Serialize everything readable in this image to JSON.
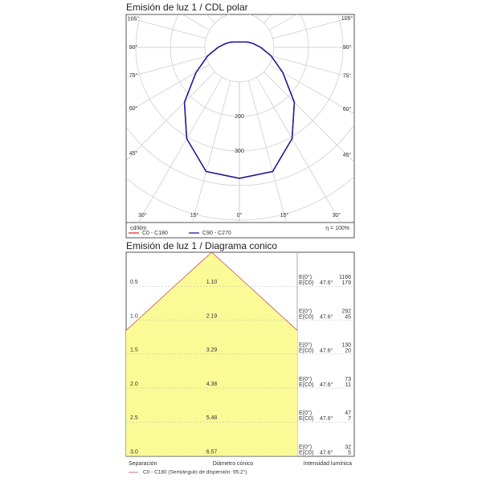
{
  "chart_data": [
    {
      "type": "polar",
      "title": "Emisión de luz 1 / CDL polar",
      "unit": "cd/klm",
      "efficiency": "η = 100%",
      "angles": [
        0,
        15,
        30,
        45,
        60,
        75,
        90,
        105,
        120,
        135,
        150,
        165,
        180
      ],
      "series": [
        {
          "name": "C0 - C180",
          "color": "#e03030",
          "values": [
            379,
            372,
            305,
            225,
            145,
            95,
            62,
            42,
            30,
            22,
            18,
            16,
            16
          ]
        },
        {
          "name": "C90 - C270",
          "color": "#1a1aa0",
          "values": [
            379,
            372,
            305,
            225,
            145,
            95,
            62,
            42,
            30,
            22,
            18,
            16,
            16
          ]
        }
      ],
      "rlim": [
        0,
        600
      ],
      "rgrid": [
        100,
        200,
        300,
        400,
        500,
        600
      ],
      "rticks": [
        200,
        300
      ],
      "angle_ticks": [
        {
          "value": 0,
          "label": "0°"
        },
        {
          "value": 15,
          "label": "15°"
        },
        {
          "value": 30,
          "label": "30°"
        },
        {
          "value": 45,
          "label": "45°"
        },
        {
          "value": 60,
          "label": "60°"
        },
        {
          "value": 75,
          "label": "75°"
        },
        {
          "value": 90,
          "label": "90°"
        },
        {
          "value": 105,
          "label": "105°"
        }
      ]
    },
    {
      "type": "cone",
      "title": "Emisión de luz 1 / Diagrama conico",
      "heights": [
        0.5,
        {
          "value": 1,
          "label": "1.0"
        },
        1.5,
        {
          "value": 2,
          "label": "2.0"
        },
        2.5,
        {
          "value": 3,
          "label": "3.0"
        }
      ],
      "diameters": [
        {
          "value": 1.1,
          "label": "1.10"
        },
        2.19,
        3.29,
        4.38,
        5.48,
        6.57
      ],
      "e0": [
        1166,
        292,
        130,
        73,
        47,
        32
      ],
      "ec0": [
        179,
        45,
        20,
        11,
        7,
        5
      ],
      "half_angle": {
        "value": 47.6,
        "label": "47.6°"
      },
      "e_labels": [
        "E(0°)",
        "E(C0)"
      ],
      "column_labels": [
        "Separación",
        "Diámetro cónico",
        "Intensidad lumínica"
      ],
      "legend": {
        "name": "C0 - C180 (Semiángulo de dispersión: 95.2°)",
        "color": "#c05050"
      },
      "fill": "#fafa96"
    }
  ]
}
